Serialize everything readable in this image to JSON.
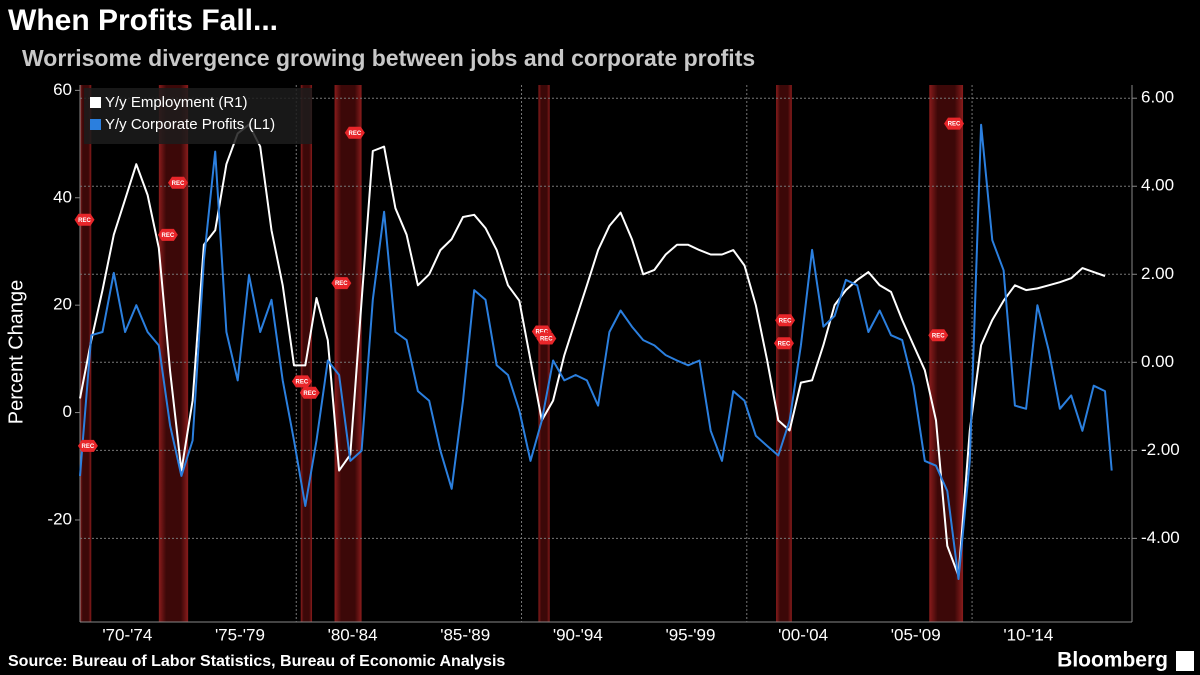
{
  "chart_data": {
    "type": "line",
    "title": "When Profits Fall...",
    "subtitle": "Worrisome divergence growing between jobs and corporate profits",
    "ylabel": "Percent Change",
    "source": "Source: Bureau of Labor Statistics, Bureau of Economic Analysis",
    "brand": "Bloomberg",
    "xlim": [
      1970.4,
      2017.1
    ],
    "xticks": [
      {
        "value": 1972.5,
        "label": "'70-'74"
      },
      {
        "value": 1977.5,
        "label": "'75-'79"
      },
      {
        "value": 1982.5,
        "label": "'80-'84"
      },
      {
        "value": 1987.5,
        "label": "'85-'89"
      },
      {
        "value": 1992.5,
        "label": "'90-'94"
      },
      {
        "value": 1997.5,
        "label": "'95-'99"
      },
      {
        "value": 2002.5,
        "label": "'00-'04"
      },
      {
        "value": 2007.5,
        "label": "'05-'09"
      },
      {
        "value": 2012.5,
        "label": "'10-'14"
      }
    ],
    "xgrid": [
      1980,
      1990,
      2000,
      2010
    ],
    "ylim": [
      -39,
      61
    ],
    "yticks": [
      -20,
      0,
      20,
      40,
      60
    ],
    "y2lim": [
      -5.9,
      6.3
    ],
    "y2ticks": [
      {
        "value": -4,
        "label": "-4.00"
      },
      {
        "value": -2,
        "label": "-2.00"
      },
      {
        "value": 0,
        "label": "0.00"
      },
      {
        "value": 2,
        "label": "2.00"
      },
      {
        "value": 4,
        "label": "4.00"
      },
      {
        "value": 6,
        "label": "6.00"
      }
    ],
    "grid": true,
    "legend": "top-left",
    "recessions": [
      {
        "start": 1970.4,
        "end": 1970.9
      },
      {
        "start": 1973.9,
        "end": 1975.2
      },
      {
        "start": 1980.2,
        "end": 1980.7
      },
      {
        "start": 1981.7,
        "end": 1982.9
      },
      {
        "start": 1990.75,
        "end": 1991.25
      },
      {
        "start": 2001.3,
        "end": 2002.0
      },
      {
        "start": 2008.1,
        "end": 2009.6
      }
    ],
    "recession_labels": [
      {
        "x": 1970.6,
        "y": 35.9,
        "label": "REC"
      },
      {
        "x": 1970.75,
        "y": -6.2,
        "label": "REC"
      },
      {
        "x": 1974.3,
        "y": 33.1,
        "label": "REC"
      },
      {
        "x": 1974.75,
        "y": 42.8,
        "label": "REC"
      },
      {
        "x": 1980.25,
        "y": 5.8,
        "label": "REC"
      },
      {
        "x": 1980.6,
        "y": 3.7,
        "label": "REC"
      },
      {
        "x": 1982.0,
        "y": 24.1,
        "label": "REC"
      },
      {
        "x": 1982.6,
        "y": 52.1,
        "label": "REC"
      },
      {
        "x": 1990.9,
        "y": 15.1,
        "label": "REC"
      },
      {
        "x": 1991.1,
        "y": 13.8,
        "label": "REC"
      },
      {
        "x": 2001.7,
        "y": 17.2,
        "label": "REC"
      },
      {
        "x": 2001.65,
        "y": 12.9,
        "label": "REC"
      },
      {
        "x": 2008.5,
        "y": 14.4,
        "label": "REC"
      },
      {
        "x": 2009.2,
        "y": 53.8,
        "label": "REC"
      }
    ],
    "series": [
      {
        "name": "Y/y Employment (R1)",
        "color": "#ffffff",
        "axis": "y2",
        "x": [
          1970.4,
          1970.9,
          1971.4,
          1971.9,
          1972.4,
          1972.9,
          1973.4,
          1973.9,
          1974.4,
          1974.9,
          1975.4,
          1975.9,
          1976.4,
          1976.9,
          1977.4,
          1977.9,
          1978.4,
          1978.9,
          1979.4,
          1979.9,
          1980.4,
          1980.9,
          1981.4,
          1981.9,
          1982.4,
          1982.9,
          1983.4,
          1983.9,
          1984.4,
          1984.9,
          1985.4,
          1985.9,
          1986.4,
          1986.9,
          1987.4,
          1987.9,
          1988.4,
          1988.9,
          1989.4,
          1989.9,
          1990.4,
          1990.9,
          1991.4,
          1991.9,
          1992.4,
          1992.9,
          1993.4,
          1993.9,
          1994.4,
          1994.9,
          1995.4,
          1995.9,
          1996.4,
          1996.9,
          1997.4,
          1997.9,
          1998.4,
          1998.9,
          1999.4,
          1999.9,
          2000.4,
          2000.9,
          2001.4,
          2001.9,
          2002.4,
          2002.9,
          2003.4,
          2003.9,
          2004.4,
          2004.9,
          2005.4,
          2005.9,
          2006.4,
          2006.9,
          2007.4,
          2007.9,
          2008.4,
          2008.9,
          2009.4,
          2009.9,
          2010.4,
          2010.9,
          2011.4,
          2011.9,
          2012.4,
          2012.9,
          2013.4,
          2013.9,
          2014.4,
          2014.9,
          2015.4,
          2015.9
        ],
        "values": [
          -0.82,
          0.5,
          1.64,
          2.9,
          3.7,
          4.5,
          3.8,
          2.6,
          -0.2,
          -2.46,
          -0.87,
          2.67,
          3.0,
          4.5,
          5.2,
          5.4,
          4.9,
          3.0,
          1.75,
          -0.07,
          -0.07,
          1.46,
          0.5,
          -2.46,
          -2.1,
          1.4,
          4.8,
          4.9,
          3.5,
          2.9,
          1.75,
          2.0,
          2.55,
          2.8,
          3.3,
          3.35,
          3.05,
          2.55,
          1.75,
          1.4,
          0.05,
          -1.32,
          -0.87,
          0.16,
          0.96,
          1.75,
          2.55,
          3.1,
          3.4,
          2.8,
          2.0,
          2.1,
          2.45,
          2.67,
          2.67,
          2.55,
          2.45,
          2.45,
          2.55,
          2.2,
          1.3,
          0.05,
          -1.32,
          -1.55,
          -0.46,
          -0.41,
          0.39,
          1.3,
          1.64,
          1.87,
          2.05,
          1.75,
          1.6,
          0.96,
          0.39,
          -0.18,
          -1.32,
          -4.17,
          -4.85,
          -1.55,
          0.39,
          0.96,
          1.4,
          1.75,
          1.64,
          1.68,
          1.75,
          1.82,
          1.91,
          2.14,
          2.05,
          1.96
        ]
      },
      {
        "name": "Y/y Corporate Profits (L1)",
        "color": "#2b7fde",
        "axis": "y",
        "x": [
          1970.4,
          1970.9,
          1971.4,
          1971.9,
          1972.4,
          1972.9,
          1973.4,
          1973.9,
          1974.4,
          1974.9,
          1975.4,
          1975.9,
          1976.4,
          1976.9,
          1977.4,
          1977.9,
          1978.4,
          1978.9,
          1979.4,
          1979.9,
          1980.4,
          1980.9,
          1981.4,
          1981.9,
          1982.4,
          1982.9,
          1983.4,
          1983.9,
          1984.4,
          1984.9,
          1985.4,
          1985.9,
          1986.4,
          1986.9,
          1987.4,
          1987.9,
          1988.4,
          1988.9,
          1989.4,
          1989.9,
          1990.4,
          1990.9,
          1991.4,
          1991.9,
          1992.4,
          1992.9,
          1993.4,
          1993.9,
          1994.4,
          1994.9,
          1995.4,
          1995.9,
          1996.4,
          1996.9,
          1997.4,
          1997.9,
          1998.4,
          1998.9,
          1999.4,
          1999.9,
          2000.4,
          2000.9,
          2001.4,
          2001.9,
          2002.4,
          2002.9,
          2003.4,
          2003.9,
          2004.4,
          2004.9,
          2005.4,
          2005.9,
          2006.4,
          2006.9,
          2007.4,
          2007.9,
          2008.4,
          2008.9,
          2009.4,
          2009.9,
          2010.4,
          2010.9,
          2011.4,
          2011.9,
          2012.4,
          2012.9,
          2013.4,
          2013.9,
          2014.4,
          2014.9,
          2015.4,
          2015.9,
          2016.2
        ],
        "values": [
          -11.8,
          14.4,
          15,
          26,
          15,
          20,
          15,
          12.5,
          -2.4,
          -11.8,
          -5.2,
          28.4,
          48.6,
          15,
          6,
          25.6,
          15,
          21,
          6,
          -5.2,
          -17.4,
          -5.2,
          9.7,
          7,
          -9,
          -7.1,
          21,
          37.4,
          15,
          13.5,
          4,
          2.2,
          -7.1,
          -14.2,
          2.2,
          22.8,
          21,
          8.8,
          7,
          0.4,
          -9,
          -1.5,
          9.7,
          6,
          7,
          6,
          1.3,
          15,
          19,
          16,
          13.5,
          12.5,
          10.7,
          9.7,
          8.8,
          9.7,
          -3.4,
          -9,
          4,
          2.2,
          -4.3,
          -6.2,
          -8,
          -1.5,
          12.5,
          30.3,
          16,
          18,
          24.7,
          23.7,
          15,
          19,
          14.4,
          13.5,
          5,
          -9,
          -9.9,
          -14.6,
          -31,
          -9,
          53.6,
          32.1,
          26.5,
          1.3,
          0.7,
          20,
          11.6,
          0.7,
          3.2,
          -3.4,
          5,
          4,
          -10.8
        ]
      }
    ]
  }
}
